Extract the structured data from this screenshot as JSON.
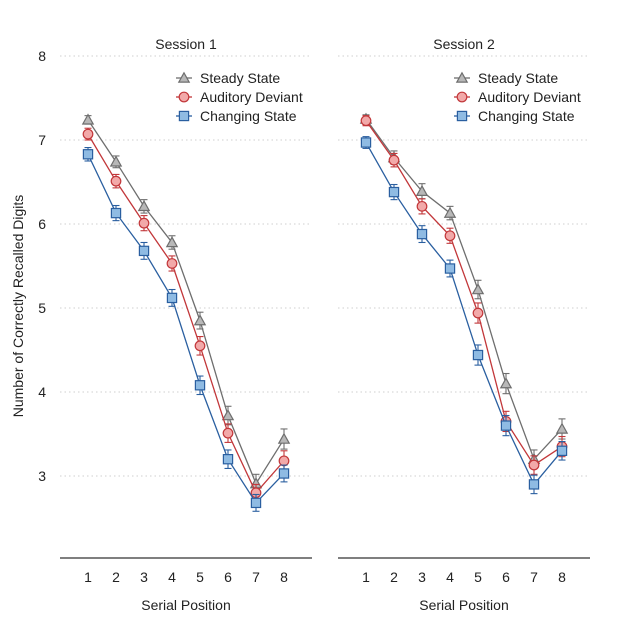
{
  "chart_data": {
    "type": "line",
    "ylabel": "Number of Correctly Recalled Digits",
    "ylim": [
      2,
      8
    ],
    "yticks": [
      "3",
      "4",
      "5",
      "6",
      "7",
      "8"
    ],
    "grid": true,
    "legend_position": "top-right",
    "colors": {
      "Steady State": "#6e6e6e",
      "Auditory Deviant": "#c2373a",
      "Changing State": "#2a5fa0"
    },
    "fills": {
      "Steady State": "#b8b8b8",
      "Auditory Deviant": "#f2a9a9",
      "Changing State": "#8fbbe3"
    },
    "markers": {
      "Steady State": "triangle",
      "Auditory Deviant": "circle",
      "Changing State": "square"
    },
    "panels": [
      {
        "title": "Session 1",
        "xlabel": "Serial Position",
        "x": [
          1,
          2,
          3,
          4,
          5,
          6,
          7,
          8
        ],
        "series": [
          {
            "name": "Steady State",
            "values": [
              7.24,
              6.74,
              6.21,
              5.78,
              4.85,
              3.72,
              2.91,
              3.44
            ],
            "errors": [
              0.05,
              0.07,
              0.08,
              0.08,
              0.1,
              0.11,
              0.11,
              0.12
            ]
          },
          {
            "name": "Auditory Deviant",
            "values": [
              7.07,
              6.51,
              6.01,
              5.53,
              4.55,
              3.51,
              2.8,
              3.18
            ],
            "errors": [
              0.07,
              0.08,
              0.09,
              0.09,
              0.11,
              0.11,
              0.1,
              0.12
            ]
          },
          {
            "name": "Changing State",
            "values": [
              6.83,
              6.13,
              5.68,
              5.12,
              4.08,
              3.2,
              2.68,
              3.03
            ],
            "errors": [
              0.08,
              0.09,
              0.1,
              0.1,
              0.11,
              0.11,
              0.1,
              0.1
            ]
          }
        ]
      },
      {
        "title": "Session 2",
        "xlabel": "Serial Position",
        "x": [
          1,
          2,
          3,
          4,
          5,
          6,
          7,
          8
        ],
        "series": [
          {
            "name": "Steady State",
            "values": [
              7.25,
              6.79,
              6.39,
              6.13,
              5.22,
              4.1,
              3.2,
              3.56
            ],
            "errors": [
              0.05,
              0.08,
              0.09,
              0.08,
              0.11,
              0.12,
              0.11,
              0.12
            ]
          },
          {
            "name": "Auditory Deviant",
            "values": [
              7.23,
              6.76,
              6.21,
              5.86,
              4.94,
              3.65,
              3.13,
              3.35
            ],
            "errors": [
              0.06,
              0.08,
              0.09,
              0.09,
              0.12,
              0.12,
              0.11,
              0.12
            ]
          },
          {
            "name": "Changing State",
            "values": [
              6.97,
              6.38,
              5.88,
              5.47,
              4.44,
              3.6,
              2.9,
              3.3
            ],
            "errors": [
              0.07,
              0.09,
              0.1,
              0.1,
              0.12,
              0.12,
              0.11,
              0.11
            ]
          }
        ]
      }
    ]
  }
}
